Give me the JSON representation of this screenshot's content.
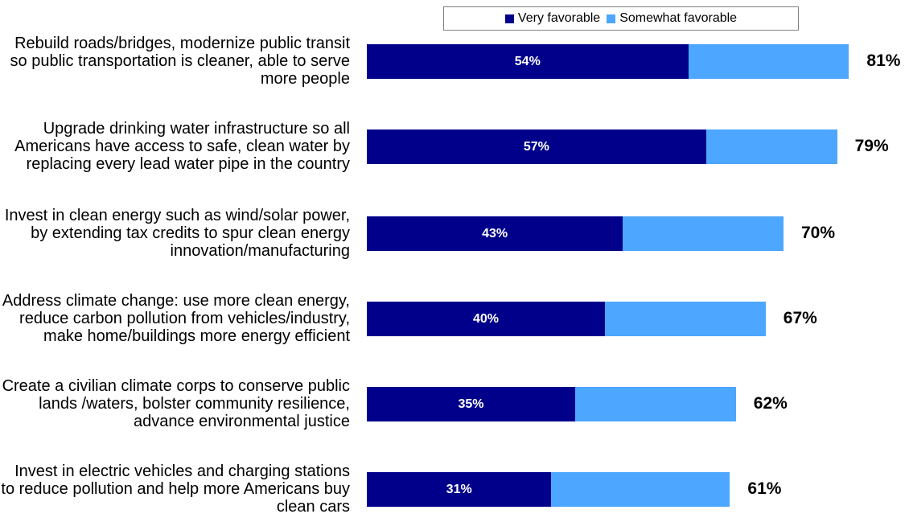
{
  "chart_data": {
    "type": "bar",
    "orientation": "horizontal",
    "stacked": true,
    "legend": [
      "Very favorable",
      "Somewhat favorable"
    ],
    "legend_position": "top",
    "colors": {
      "very": "#00008b",
      "somewhat": "#4da6ff"
    },
    "categories": [
      "Rebuild roads/bridges, modernize public transit so public transportation is cleaner, able to serve more people",
      "Upgrade drinking water infrastructure so all Americans have access to safe, clean water by replacing every lead water pipe in the country",
      "Invest in clean energy such as wind/solar power, by extending tax credits to spur clean energy innovation/manufacturing",
      "Address climate change: use more clean energy, reduce carbon pollution from vehicles/industry, make home/buildings more energy efficient",
      "Create a civilian climate corps to conserve public lands /waters, bolster community resilience,  advance environmental justice",
      "Invest in electric vehicles and charging stations to reduce pollution and help more Americans buy clean cars"
    ],
    "series": [
      {
        "name": "Very favorable",
        "values": [
          54,
          57,
          43,
          40,
          35,
          31
        ],
        "labels": [
          "54%",
          "57%",
          "43%",
          "40%",
          "35%",
          "31%"
        ]
      },
      {
        "name": "Somewhat favorable",
        "values": [
          27,
          22,
          27,
          27,
          27,
          30
        ]
      }
    ],
    "totals": [
      81,
      79,
      70,
      67,
      62,
      61
    ],
    "total_labels": [
      "81%",
      "79%",
      "70%",
      "67%",
      "62%",
      "61%"
    ],
    "xlim": [
      0,
      100
    ]
  }
}
